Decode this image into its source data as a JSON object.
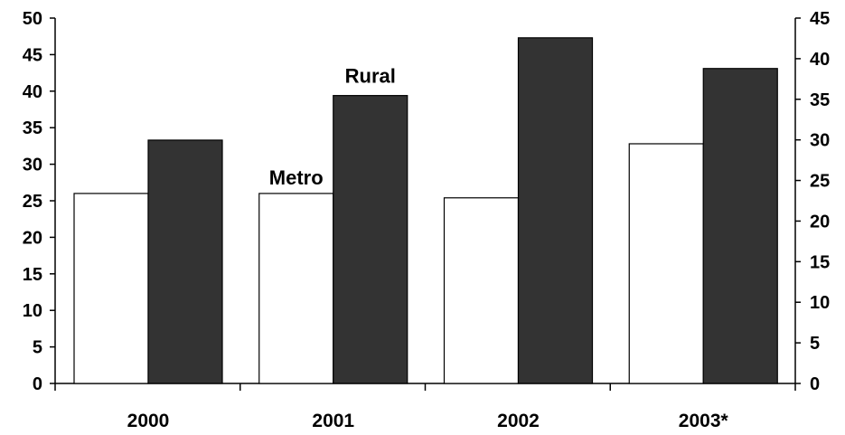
{
  "chart_data": {
    "type": "bar",
    "categories": [
      "2000",
      "2001",
      "2002",
      "2003*"
    ],
    "series": [
      {
        "name": "Metro",
        "values": [
          26,
          26,
          25.4,
          32.8
        ],
        "color": "#ffffff"
      },
      {
        "name": "Rural",
        "values": [
          33.3,
          39.4,
          47.3,
          43.1
        ],
        "color": "#333333"
      }
    ],
    "title": "",
    "xlabel": "",
    "ylabel": "",
    "ylim": [
      0,
      50
    ],
    "y_ticks": [
      "0",
      "5",
      "10",
      "15",
      "20",
      "25",
      "30",
      "35",
      "40",
      "45",
      "50"
    ],
    "y2lim": [
      0,
      45
    ],
    "y2_ticks": [
      "0",
      "5",
      "10",
      "15",
      "20",
      "25",
      "30",
      "35",
      "40",
      "45"
    ],
    "grid": false,
    "legend": "labels on bars (Metro on 2001 metro bar, Rural on 2001 rural bar)"
  }
}
